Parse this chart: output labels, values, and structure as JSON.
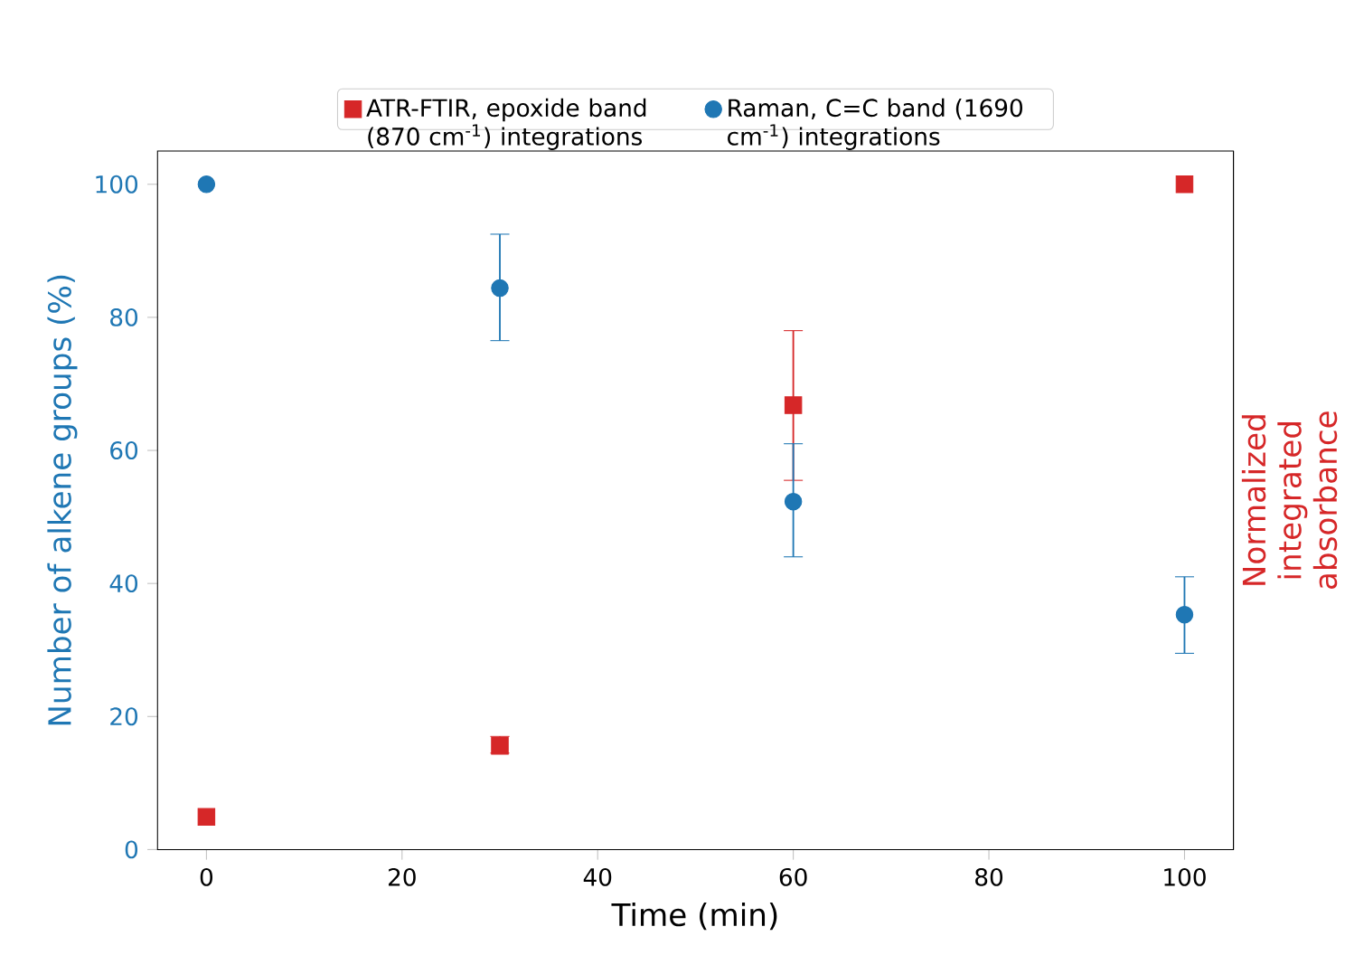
{
  "chart_data": {
    "type": "scatter",
    "xlabel": "Time (min)",
    "ylabel": "Number of alkene groups (%)",
    "y2label": "Normalized integrated absorbance",
    "xlim": [
      -5,
      105
    ],
    "xticks": [
      0,
      20,
      40,
      60,
      80,
      100
    ],
    "ylim": [
      0,
      105
    ],
    "yticks": [
      0,
      20,
      40,
      60,
      80,
      100
    ],
    "x": [
      0,
      30,
      60,
      100
    ],
    "series": [
      {
        "name": "ATR-FTIR, epoxide band (870 cm$^{-1}$) integrations",
        "color": "#d62728",
        "marker": "square",
        "values": [
          4.9,
          15.6,
          66.8,
          100
        ],
        "errors": [
          null,
          [
            14.5,
            17
          ],
          [
            55.5,
            78
          ],
          null
        ]
      },
      {
        "name": "Raman, C=C band (1690 cm$^{-1}$) integrations",
        "color": "#1f77b4",
        "marker": "circle",
        "values": [
          100,
          84.4,
          52.3,
          35.3
        ],
        "errors": [
          null,
          [
            76.5,
            92.5
          ],
          [
            44,
            61
          ],
          [
            29.5,
            41
          ]
        ]
      }
    ],
    "legend": "top",
    "grid": false
  }
}
